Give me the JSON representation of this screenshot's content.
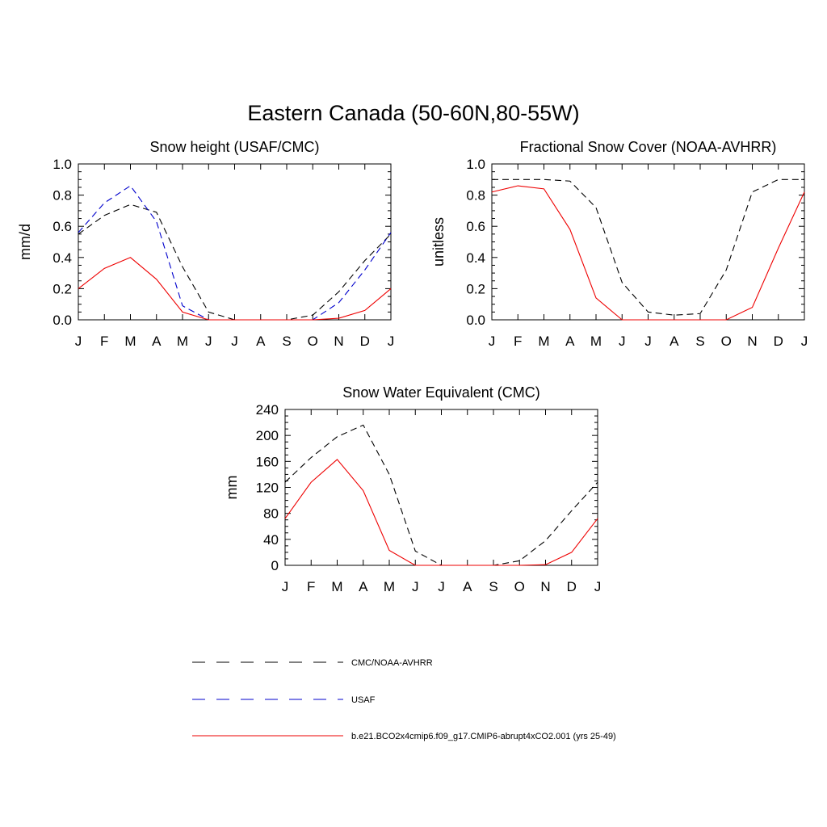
{
  "figure": {
    "title": "Eastern Canada (50-60N,80-55W)"
  },
  "chart_data": [
    {
      "type": "line",
      "title": "Snow height (USAF/CMC)",
      "xlabel": "",
      "ylabel": "mm/d",
      "categories": [
        "J",
        "F",
        "M",
        "A",
        "M",
        "J",
        "J",
        "A",
        "S",
        "O",
        "N",
        "D",
        "J"
      ],
      "ylim": [
        0,
        1.0
      ],
      "yticks": [
        0.0,
        0.2,
        0.4,
        0.6,
        0.8,
        1.0
      ],
      "ytick_labels": [
        "0.0",
        "0.2",
        "0.4",
        "0.6",
        "0.8",
        "1.0"
      ],
      "series": [
        {
          "name": "CMC/NOAA-AVHRR",
          "color": "#000000",
          "dash": true,
          "values": [
            0.55,
            0.67,
            0.74,
            0.69,
            0.34,
            0.05,
            0.0,
            0.0,
            0.0,
            0.03,
            0.18,
            0.38,
            0.55
          ]
        },
        {
          "name": "USAF",
          "color": "#0000cc",
          "dash": true,
          "values": [
            0.56,
            0.75,
            0.86,
            0.63,
            0.09,
            0.0,
            0.0,
            0.0,
            0.0,
            0.0,
            0.11,
            0.32,
            0.56
          ]
        },
        {
          "name": "b.e21.BCO2x4cmip6.f09_g17.CMIP6-abrupt4xCO2.001 (yrs 25-49)",
          "color": "#ee0000",
          "dash": false,
          "values": [
            0.2,
            0.33,
            0.4,
            0.26,
            0.05,
            0.0,
            0.0,
            0.0,
            0.0,
            0.0,
            0.01,
            0.06,
            0.2
          ]
        }
      ]
    },
    {
      "type": "line",
      "title": "Fractional Snow Cover (NOAA-AVHRR)",
      "xlabel": "",
      "ylabel": "unitless",
      "categories": [
        "J",
        "F",
        "M",
        "A",
        "M",
        "J",
        "J",
        "A",
        "S",
        "O",
        "N",
        "D",
        "J"
      ],
      "ylim": [
        0,
        1.0
      ],
      "yticks": [
        0.0,
        0.2,
        0.4,
        0.6,
        0.8,
        1.0
      ],
      "ytick_labels": [
        "0.0",
        "0.2",
        "0.4",
        "0.6",
        "0.8",
        "1.0"
      ],
      "series": [
        {
          "name": "CMC/NOAA-AVHRR",
          "color": "#000000",
          "dash": true,
          "values": [
            0.9,
            0.9,
            0.9,
            0.89,
            0.72,
            0.24,
            0.05,
            0.03,
            0.04,
            0.32,
            0.82,
            0.9,
            0.9
          ]
        },
        {
          "name": "b.e21.BCO2x4cmip6.f09_g17.CMIP6-abrupt4xCO2.001 (yrs 25-49)",
          "color": "#ee0000",
          "dash": false,
          "values": [
            0.82,
            0.86,
            0.84,
            0.58,
            0.14,
            0.0,
            0.0,
            0.0,
            0.0,
            0.0,
            0.08,
            0.46,
            0.82
          ]
        }
      ]
    },
    {
      "type": "line",
      "title": "Snow Water Equivalent (CMC)",
      "xlabel": "",
      "ylabel": "mm",
      "categories": [
        "J",
        "F",
        "M",
        "A",
        "M",
        "J",
        "J",
        "A",
        "S",
        "O",
        "N",
        "D",
        "J"
      ],
      "ylim": [
        0,
        240
      ],
      "yticks": [
        0,
        40,
        80,
        120,
        160,
        200,
        240
      ],
      "ytick_labels": [
        "0",
        "40",
        "80",
        "120",
        "160",
        "200",
        "240"
      ],
      "series": [
        {
          "name": "CMC/NOAA-AVHRR",
          "color": "#000000",
          "dash": true,
          "values": [
            128,
            166,
            198,
            216,
            140,
            22,
            0,
            0,
            0,
            7,
            38,
            84,
            128
          ]
        },
        {
          "name": "b.e21.BCO2x4cmip6.f09_g17.CMIP6-abrupt4xCO2.001 (yrs 25-49)",
          "color": "#ee0000",
          "dash": false,
          "values": [
            72,
            128,
            163,
            115,
            23,
            0,
            0,
            0,
            0,
            0,
            1,
            20,
            72
          ]
        }
      ]
    }
  ],
  "legend": {
    "items": [
      {
        "label": "CMC/NOAA-AVHRR",
        "color": "#000000",
        "dash": true
      },
      {
        "label": "USAF",
        "color": "#0000cc",
        "dash": true
      },
      {
        "label": "b.e21.BCO2x4cmip6.f09_g17.CMIP6-abrupt4xCO2.001 (yrs 25-49)",
        "color": "#ee0000",
        "dash": false
      }
    ]
  }
}
